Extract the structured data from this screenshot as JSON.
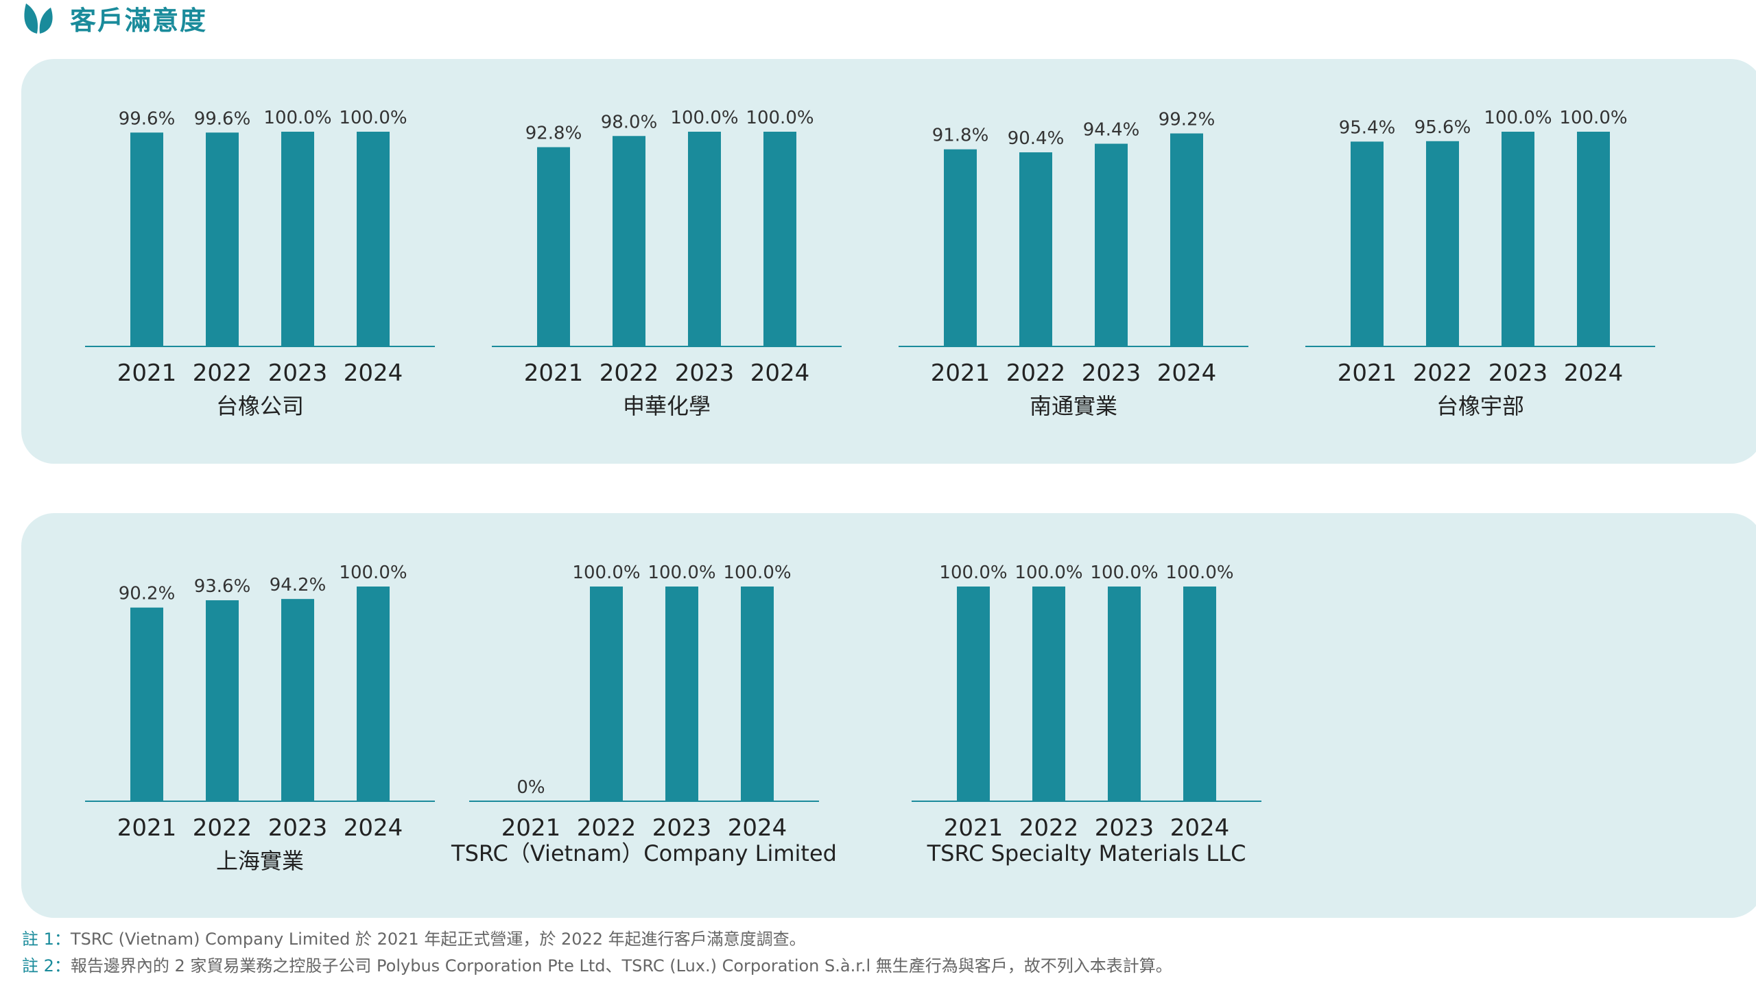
{
  "header": {
    "title": "客戶滿意度",
    "icon": "leaf-icon",
    "accent": "#1a8b9b"
  },
  "chart_data": [
    {
      "type": "bar",
      "title": "台橡公司",
      "categories": [
        "2021",
        "2022",
        "2023",
        "2024"
      ],
      "values": [
        99.6,
        99.6,
        100.0,
        100.0
      ],
      "labels": [
        "99.6%",
        "99.6%",
        "100.0%",
        "100.0%"
      ],
      "ylim": [
        0,
        100
      ]
    },
    {
      "type": "bar",
      "title": "申華化學",
      "categories": [
        "2021",
        "2022",
        "2023",
        "2024"
      ],
      "values": [
        92.8,
        98.0,
        100.0,
        100.0
      ],
      "labels": [
        "92.8%",
        "98.0%",
        "100.0%",
        "100.0%"
      ],
      "ylim": [
        0,
        100
      ]
    },
    {
      "type": "bar",
      "title": "南通實業",
      "categories": [
        "2021",
        "2022",
        "2023",
        "2024"
      ],
      "values": [
        91.8,
        90.4,
        94.4,
        99.2
      ],
      "labels": [
        "91.8%",
        "90.4%",
        "94.4%",
        "99.2%"
      ],
      "ylim": [
        0,
        100
      ]
    },
    {
      "type": "bar",
      "title": "台橡宇部",
      "categories": [
        "2021",
        "2022",
        "2023",
        "2024"
      ],
      "values": [
        95.4,
        95.6,
        100.0,
        100.0
      ],
      "labels": [
        "95.4%",
        "95.6%",
        "100.0%",
        "100.0%"
      ],
      "ylim": [
        0,
        100
      ]
    },
    {
      "type": "bar",
      "title": "上海實業",
      "categories": [
        "2021",
        "2022",
        "2023",
        "2024"
      ],
      "values": [
        90.2,
        93.6,
        94.2,
        100.0
      ],
      "labels": [
        "90.2%",
        "93.6%",
        "94.2%",
        "100.0%"
      ],
      "ylim": [
        0,
        100
      ]
    },
    {
      "type": "bar",
      "title": "TSRC（Vietnam）Company Limited",
      "categories": [
        "2021",
        "2022",
        "2023",
        "2024"
      ],
      "values": [
        0,
        100.0,
        100.0,
        100.0
      ],
      "labels": [
        "0%",
        "100.0%",
        "100.0%",
        "100.0%"
      ],
      "ylim": [
        0,
        100
      ]
    },
    {
      "type": "bar",
      "title": "TSRC Specialty Materials LLC",
      "categories": [
        "2021",
        "2022",
        "2023",
        "2024"
      ],
      "values": [
        100.0,
        100.0,
        100.0,
        100.0
      ],
      "labels": [
        "100.0%",
        "100.0%",
        "100.0%",
        "100.0%"
      ],
      "ylim": [
        0,
        100
      ]
    }
  ],
  "notes": [
    {
      "num": "註 1：",
      "text": "TSRC (Vietnam) Company Limited 於 2021 年起正式營運，於 2022 年起進行客戶滿意度調查。"
    },
    {
      "num": "註 2：",
      "text": "報告邊界內的 2 家貿易業務之控股子公司 Polybus Corporation Pte Ltd、TSRC (Lux.) Corporation S.à.r.l 無生產行為與客戶，故不列入本表計算。"
    }
  ]
}
